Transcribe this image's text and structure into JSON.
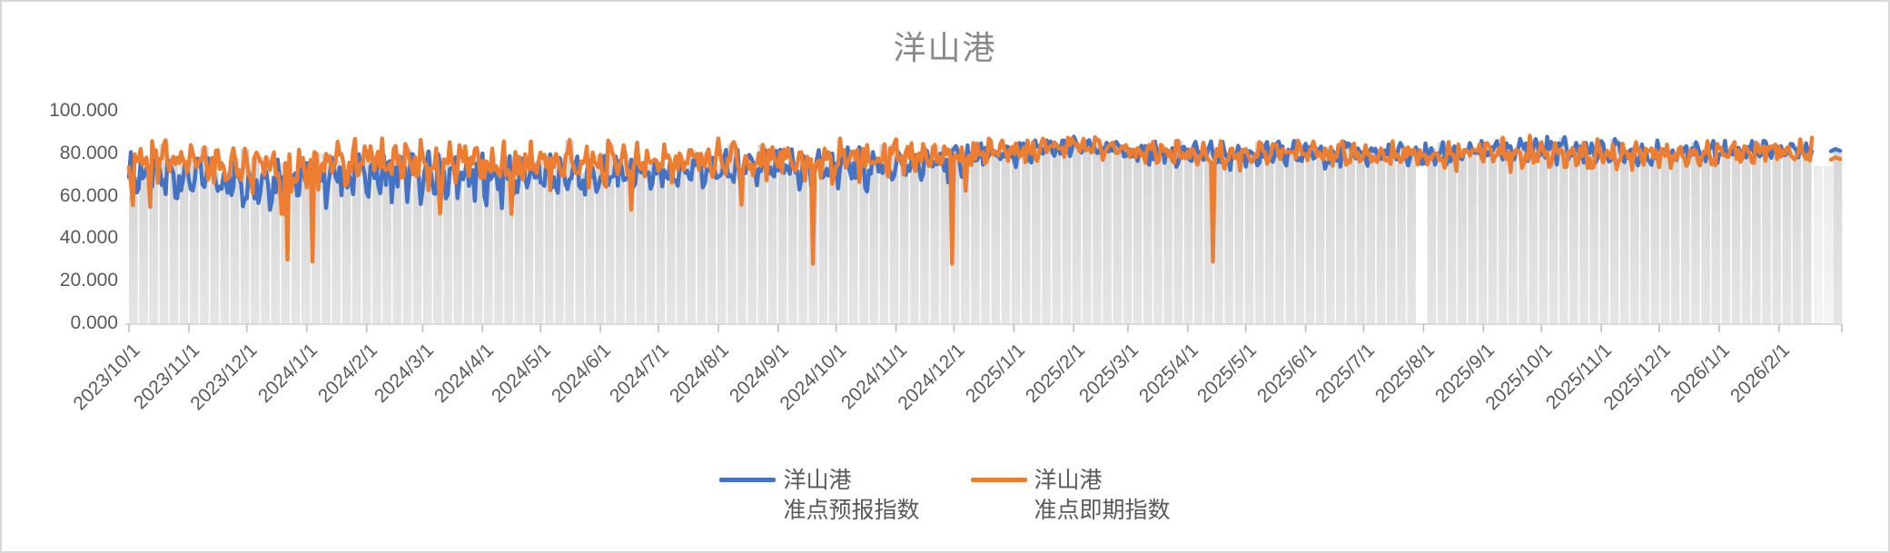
{
  "window": {
    "border_color": "#d8d8d8",
    "background": "#ffffff"
  },
  "chart": {
    "title": "洋山港",
    "title_color": "#898989",
    "axis_text_color": "#595959",
    "axis_line_color": "#d9d9d9",
    "plot_background_bar_color": "#dcdcdc"
  },
  "legend": {
    "items": [
      {
        "label_line1": "洋山港",
        "label_line2": "准点预报指数",
        "color": "#4472C4"
      },
      {
        "label_line1": "洋山港",
        "label_line2": "准点即期指数",
        "color": "#ED7D31"
      }
    ]
  },
  "chart_data": {
    "type": "line",
    "title": "洋山港",
    "legend_position": "bottom",
    "grid": "off",
    "y_axis": {
      "range": [
        0,
        100
      ],
      "tick_labels": [
        "100.000",
        "80.000",
        "60.000",
        "40.000",
        "20.000",
        "0.000"
      ],
      "tick_values": [
        100,
        80,
        60,
        40,
        20,
        0
      ]
    },
    "x_axis": {
      "resolution": "daily",
      "tick_interval": "1 month",
      "tick_labels": [
        "2023/10/1",
        "2023/11/1",
        "2023/12/1",
        "2024/1/1",
        "2024/2/1",
        "2024/3/1",
        "2024/4/1",
        "2024/5/1",
        "2024/6/1",
        "2024/7/1",
        "2024/8/1",
        "2024/9/1",
        "2024/10/1",
        "2024/11/1",
        "2024/12/1",
        "2025/1/1",
        "2025/2/1",
        "2025/3/1",
        "2025/4/1",
        "2025/5/1",
        "2025/6/1",
        "2025/7/1",
        "2025/8/1",
        "2025/9/1",
        "2025/10/1",
        "2025/11/1",
        "2025/12/1",
        "2026/1/1",
        "2026/2/1"
      ],
      "tick_day_offsets": [
        0,
        31,
        61,
        92,
        123,
        152,
        183,
        213,
        244,
        274,
        305,
        336,
        366,
        397,
        427,
        458,
        489,
        517,
        548,
        578,
        609,
        639,
        670,
        701,
        731,
        762,
        792,
        823,
        854
      ],
      "data_last_day_offset": 871
    },
    "series": [
      {
        "name": "洋山港 准点预报指数",
        "color": "#4472C4",
        "monthly_mean": [
          69,
          69,
          67,
          68,
          70,
          69,
          68,
          69,
          69,
          71,
          72,
          72,
          73,
          74,
          76,
          80,
          83,
          81,
          80,
          79,
          80,
          80,
          79,
          81,
          82,
          81,
          80,
          81,
          82
        ],
        "monthly_swing": [
          10,
          10,
          10,
          10,
          10,
          10,
          10,
          10,
          9,
          8,
          8,
          8,
          8,
          8,
          7,
          5,
          4,
          5,
          5,
          5,
          5,
          5,
          5,
          4,
          5,
          5,
          5,
          4,
          4
        ]
      },
      {
        "name": "洋山港 准点即期指数",
        "color": "#ED7D31",
        "monthly_mean": [
          77,
          76,
          74,
          75,
          76,
          75,
          74,
          75,
          75,
          76,
          77,
          77,
          77,
          78,
          79,
          81,
          84,
          82,
          80,
          79,
          80,
          80,
          79,
          80,
          81,
          79,
          80,
          80,
          81
        ],
        "monthly_swing": [
          8,
          9,
          9,
          9,
          9,
          9,
          9,
          9,
          9,
          8,
          8,
          8,
          8,
          7,
          6,
          5,
          4,
          5,
          5,
          5,
          5,
          5,
          5,
          6,
          6,
          6,
          5,
          5,
          5
        ],
        "anomaly_dips": [
          {
            "date": "2023/12/22",
            "day_offset": 82,
            "value": 30
          },
          {
            "date": "2024/1/4",
            "day_offset": 95,
            "value": 29
          },
          {
            "date": "2024/9/19",
            "day_offset": 354,
            "value": 28
          },
          {
            "date": "2024/11/30",
            "day_offset": 426,
            "value": 28
          },
          {
            "date": "2025/4/14",
            "day_offset": 561,
            "value": 29
          }
        ]
      }
    ],
    "background_bars": {
      "color": "#dcdcdc",
      "note": "dense light-gray column backdrop tracking the upper envelope of the two lines"
    },
    "data_gap": {
      "around": "2025/8/1",
      "day_offset": 670
    },
    "trailing": {
      "light_region_after": "2026/2/18",
      "isolated_final_point": {
        "date": "2026/2/27",
        "forecast": 82,
        "spot": 78
      }
    }
  }
}
